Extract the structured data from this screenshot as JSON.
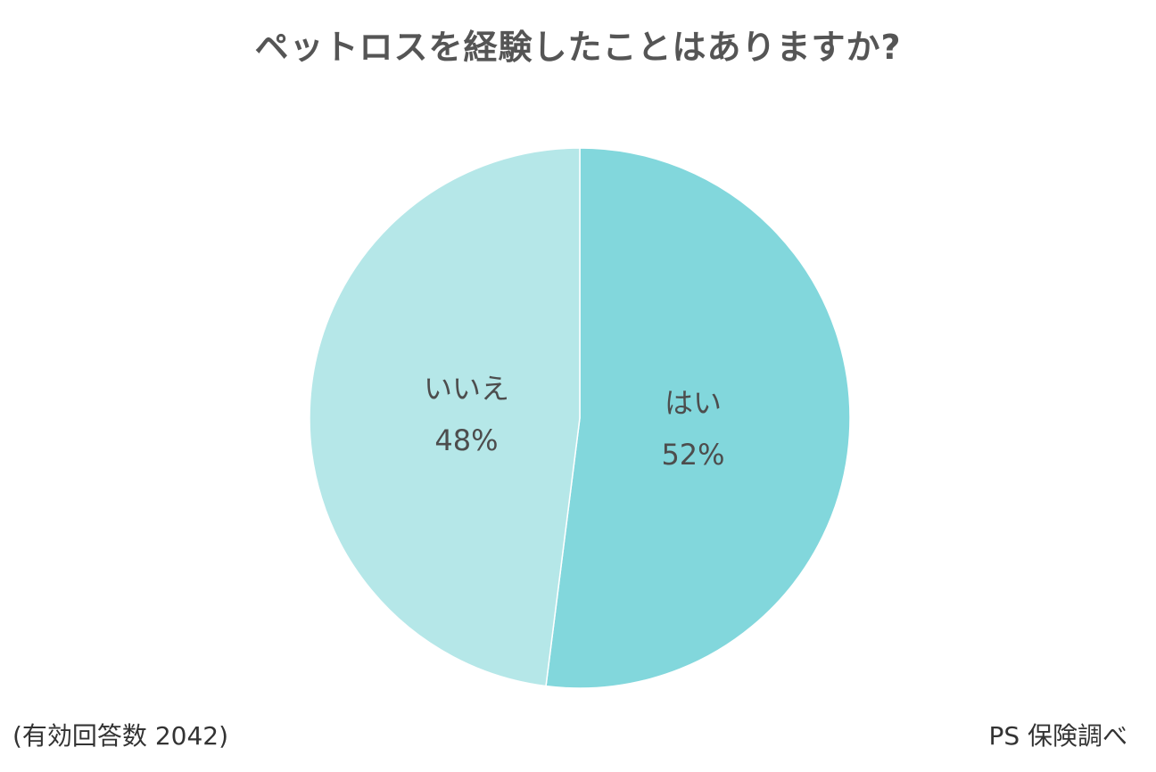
{
  "chart_data": {
    "type": "pie",
    "title": "ペットロスを経験したことはありますか?",
    "slices": [
      {
        "label": "はい",
        "value": 52,
        "value_label": "52%",
        "color": "#82d7dc"
      },
      {
        "label": "いいえ",
        "value": 48,
        "value_label": "48%",
        "color": "#b5e7e8"
      }
    ],
    "start_angle": "12 o'clock",
    "direction": "clockwise",
    "slice_border_color": "#ffffff"
  },
  "footer": {
    "sample_note": "(有効回答数 2042)",
    "source": "PS 保険調べ"
  }
}
